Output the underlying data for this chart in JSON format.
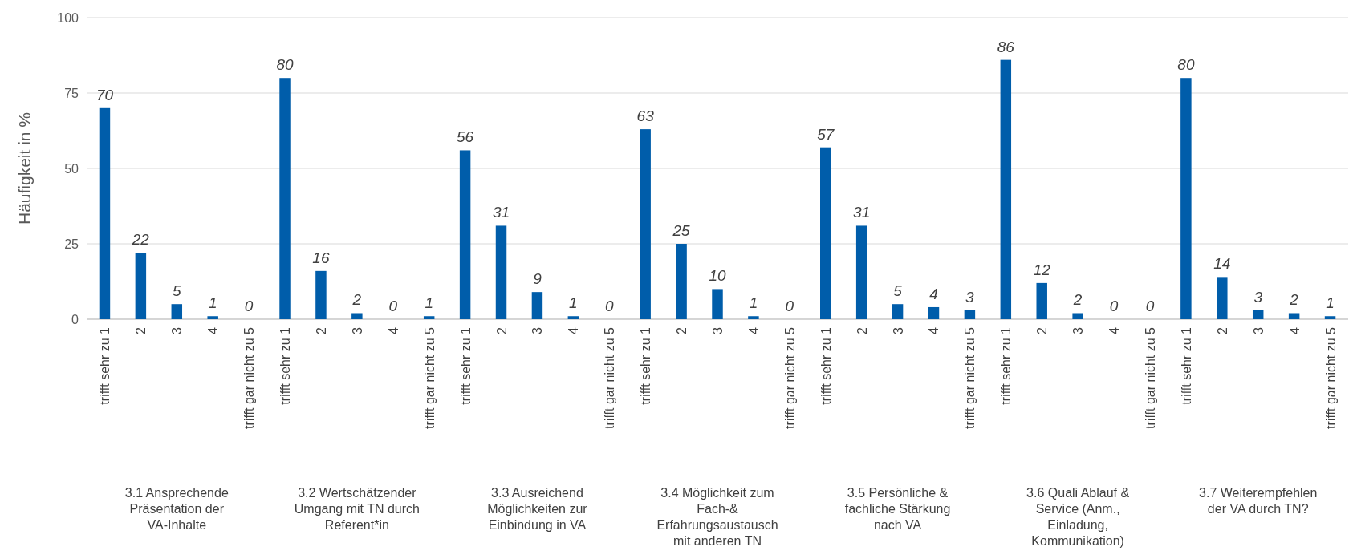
{
  "chart_data": {
    "type": "bar",
    "ylabel": "Häufigkeit in %",
    "categories": [
      "trifft sehr zu 1",
      "2",
      "3",
      "4",
      "trifft gar nicht zu 5",
      "trifft sehr zu 1",
      "2",
      "3",
      "4",
      "trifft gar nicht zu 5",
      "trifft sehr zu 1",
      "2",
      "3",
      "4",
      "trifft gar nicht zu 5",
      "trifft sehr zu 1",
      "2",
      "3",
      "4",
      "trifft gar nicht zu 5",
      "trifft sehr zu 1",
      "2",
      "3",
      "4",
      "trifft gar nicht zu 5",
      "trifft sehr zu 1",
      "2",
      "3",
      "4",
      "trifft gar nicht zu 5",
      "trifft sehr zu 1",
      "2",
      "3",
      "4",
      "trifft gar nicht zu 5"
    ],
    "values": [
      70,
      22,
      5,
      1,
      0,
      80,
      16,
      2,
      0,
      1,
      56,
      31,
      9,
      1,
      0,
      63,
      25,
      10,
      1,
      0,
      57,
      31,
      5,
      4,
      3,
      86,
      12,
      2,
      0,
      0,
      80,
      14,
      3,
      2,
      1
    ],
    "color": "#005daa",
    "ylim": [
      0,
      100
    ],
    "yticks": [
      0,
      25,
      50,
      75,
      100
    ],
    "grid": "y",
    "data_labels": true,
    "annotations": [
      "3.1 Ansprechende Präsentation der VA-Inhalte",
      "3.2 Wertschätzender Umgang mit TN durch Referent*in",
      "3.3 Ausreichend Möglichkeiten zur Einbindung in VA",
      "3.4 Möglichkeit zum Fach-& Erfahrungsaustausch mit anderen TN",
      "3.5 Persönliche & fachliche Stärkung nach VA",
      "3.6 Quali Ablauf & Service (Anm., Einladung, Kommunikation)",
      "3.7 Weiterempfehlen der VA durch TN?"
    ]
  }
}
